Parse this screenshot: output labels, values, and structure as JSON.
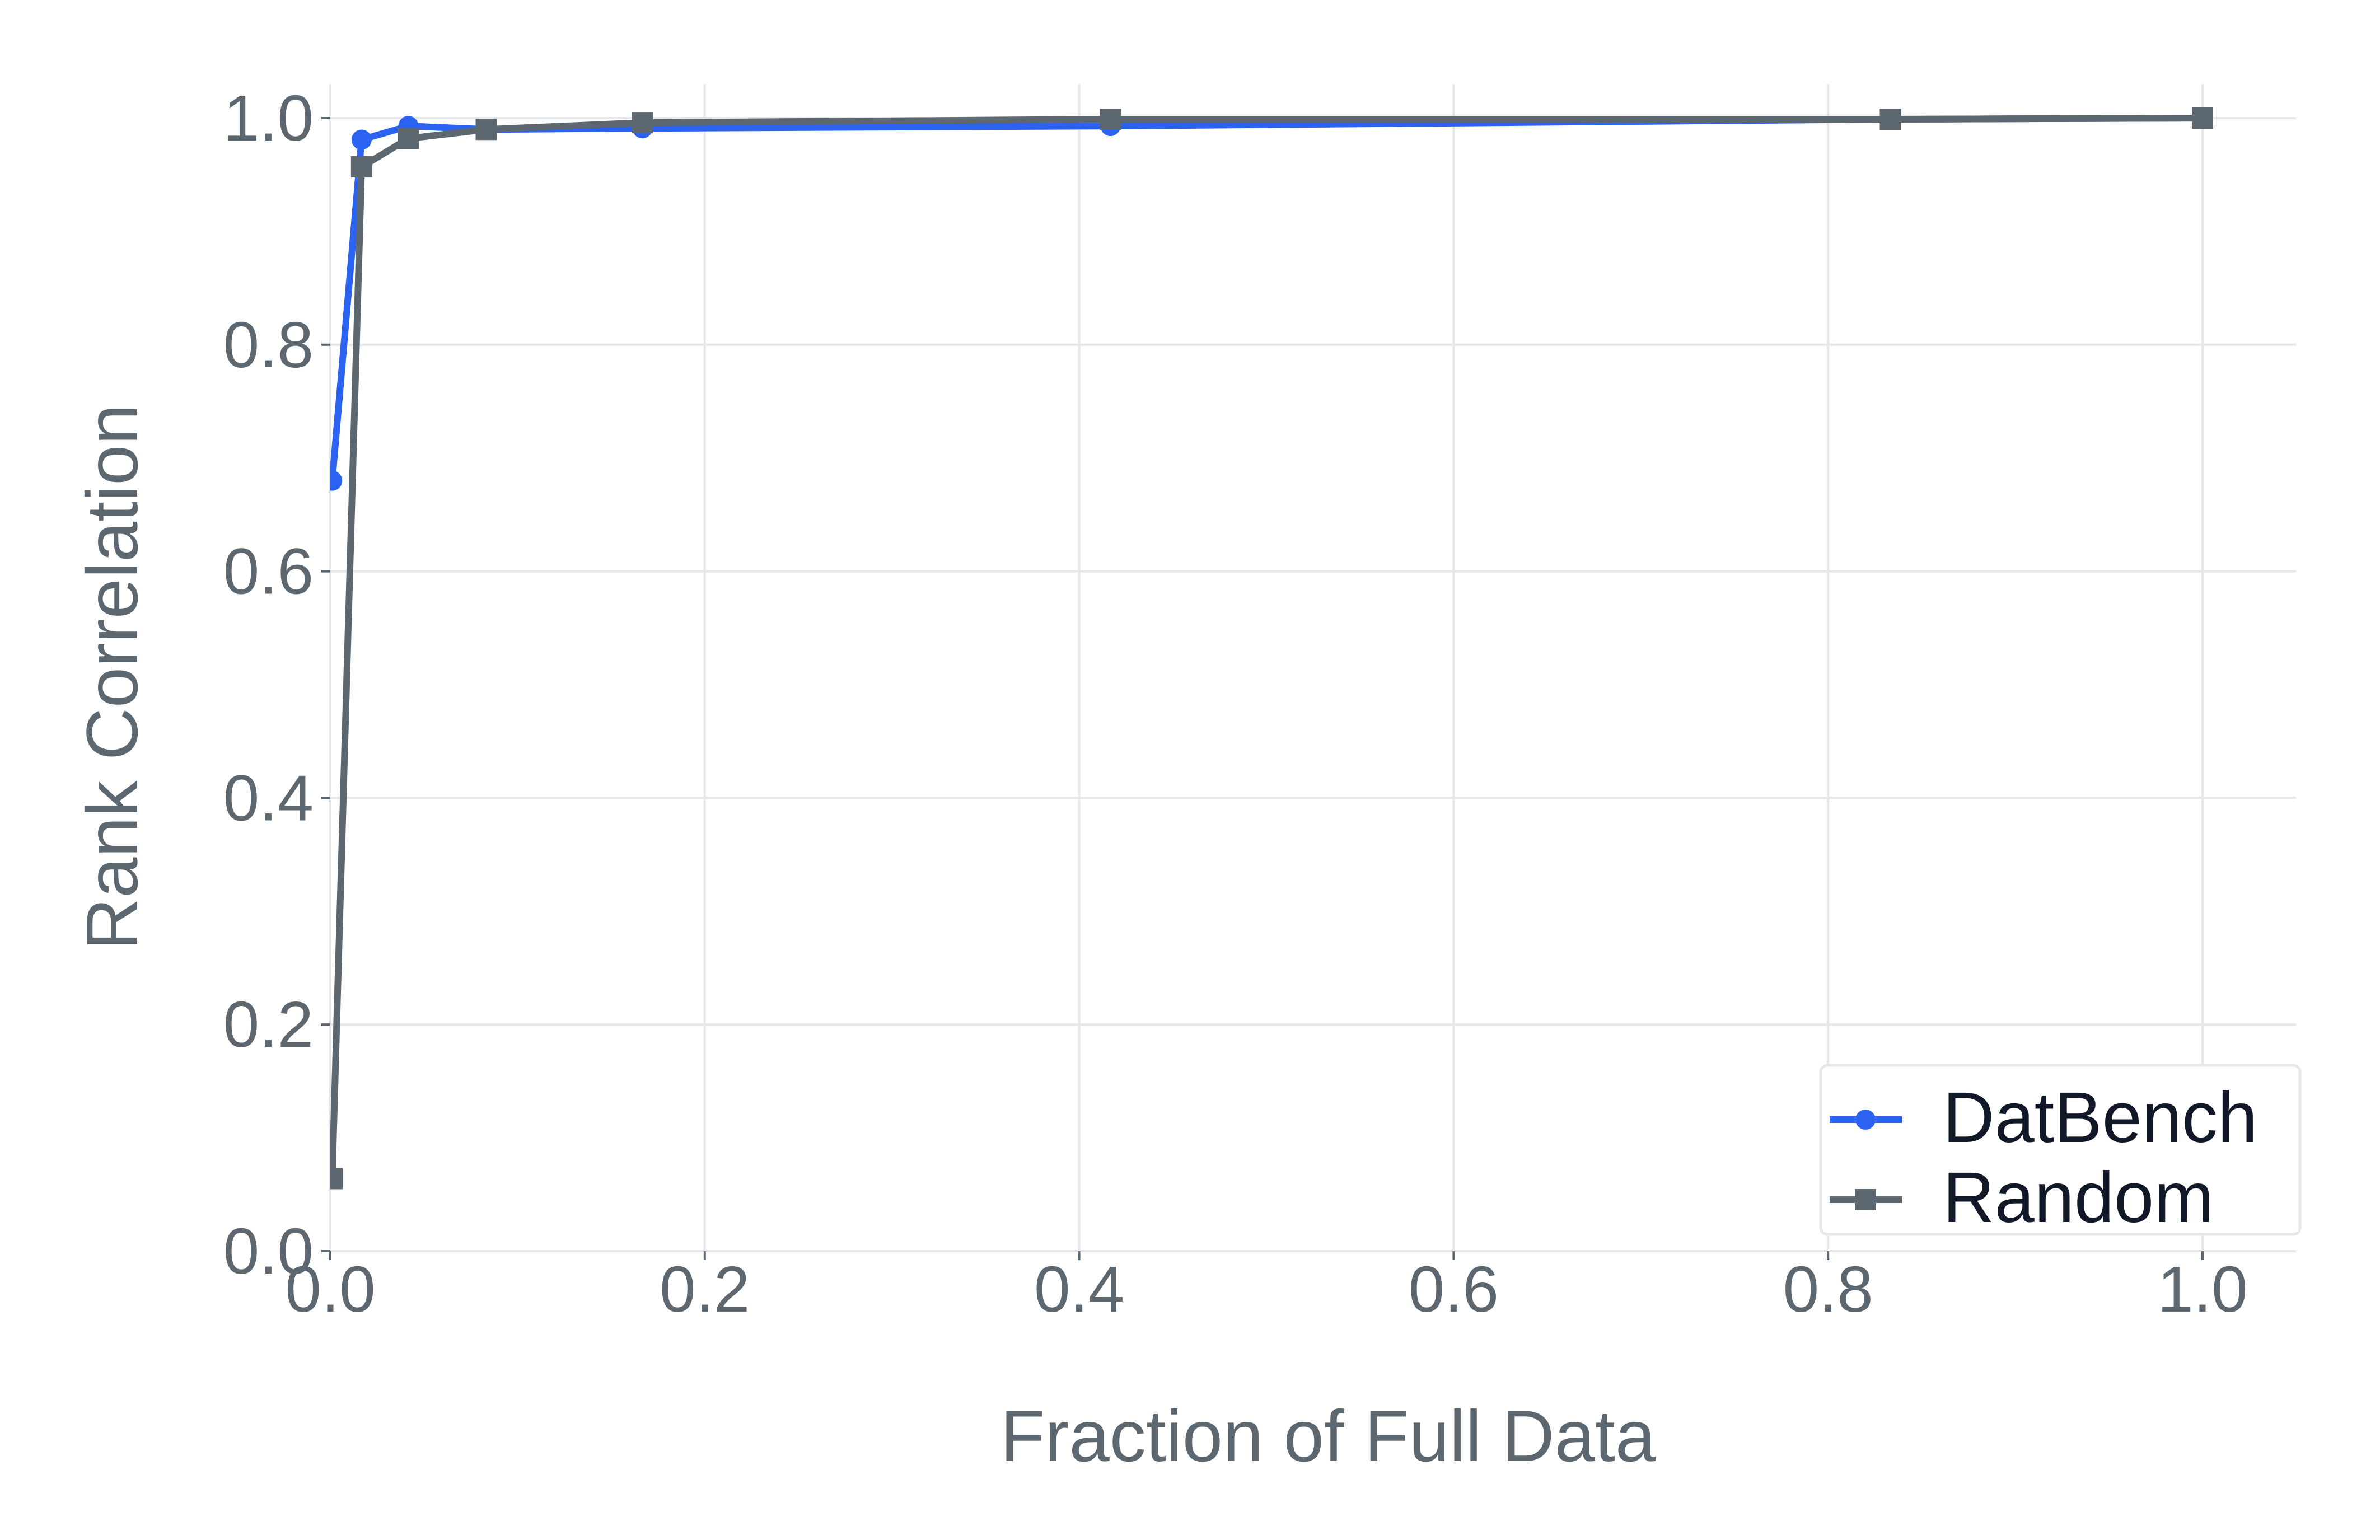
{
  "colors": {
    "datbench": "#2B63F0",
    "random": "#5D6770",
    "grid": "#E5E7EB",
    "axis_text": "#5D6770",
    "legend_text": "#111827",
    "legend_border": "#E5E7EB"
  },
  "chart_data": {
    "type": "line",
    "title": "",
    "xlabel": "Fraction of Full Data",
    "ylabel": "Rank Correlation",
    "xlim": [
      0.0,
      1.05
    ],
    "ylim": [
      0.0,
      1.03
    ],
    "xticks": [
      0.0,
      0.2,
      0.4,
      0.6,
      0.8,
      1.0
    ],
    "xtick_labels": [
      "0.0",
      "0.2",
      "0.4",
      "0.6",
      "0.8",
      "1.0"
    ],
    "yticks": [
      0.0,
      0.2,
      0.4,
      0.6,
      0.8,
      1.0
    ],
    "ytick_labels": [
      "0.0",
      "0.2",
      "0.4",
      "0.6",
      "0.8",
      "1.0"
    ],
    "grid": true,
    "legend_position": "lower right",
    "x": [
      0.001,
      0.0167,
      0.0417,
      0.0833,
      0.1667,
      0.4167,
      0.8333,
      1.0
    ],
    "series": [
      {
        "name": "DatBench",
        "marker": "circle",
        "color": "#2B63F0",
        "values": [
          0.68,
          0.981,
          0.993,
          0.99,
          0.991,
          0.993,
          0.999,
          1.0
        ]
      },
      {
        "name": "Random",
        "marker": "square",
        "color": "#5D6770",
        "values": [
          0.064,
          0.957,
          0.982,
          0.99,
          0.996,
          0.999,
          0.999,
          1.0
        ]
      }
    ]
  }
}
